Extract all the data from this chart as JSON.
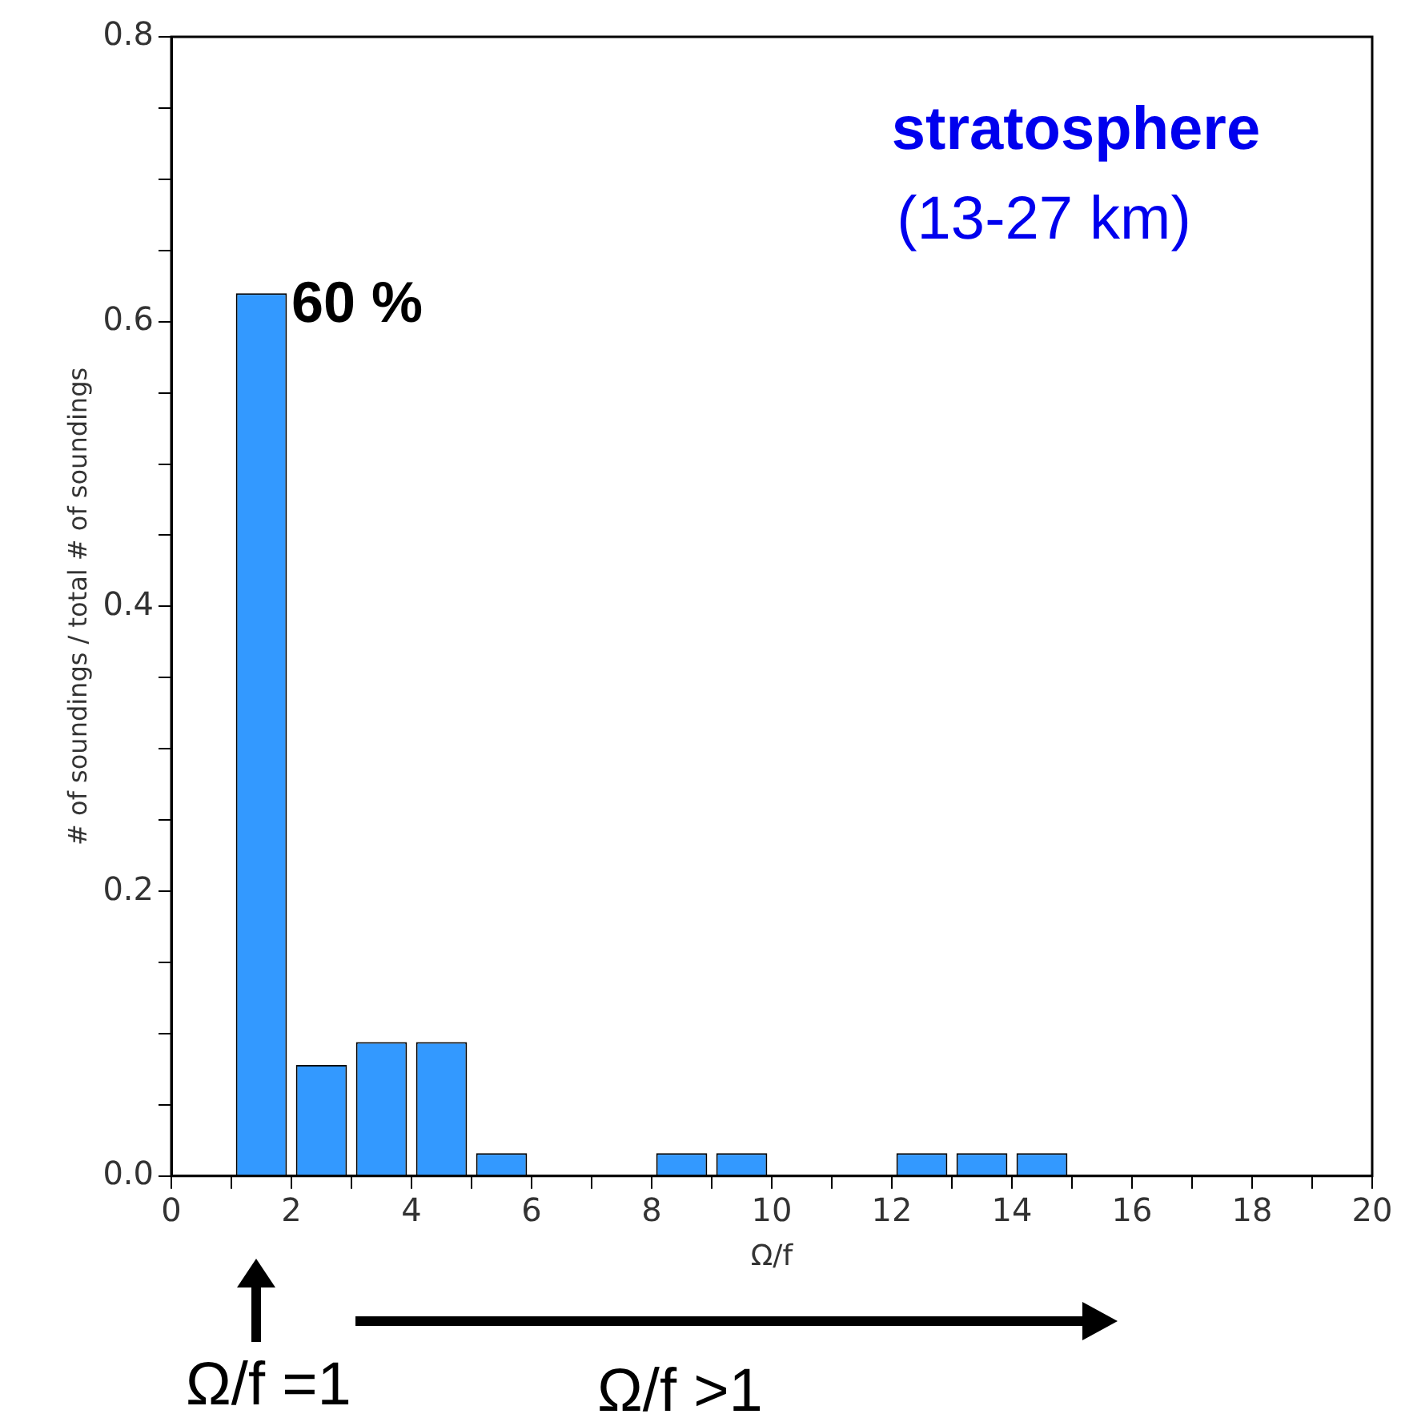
{
  "chart_data": {
    "type": "histogram",
    "title": "stratosphere",
    "subtitle": "(13-27 km)",
    "xlabel": "Ω/f",
    "ylabel": "# of soundings / total # of soundings",
    "bins": [
      1,
      2,
      3,
      4,
      5,
      6,
      7,
      8,
      9,
      10,
      11,
      12,
      13,
      14,
      15
    ],
    "values": [
      0.62,
      0.078,
      0.094,
      0.094,
      0.016,
      0,
      0,
      0.016,
      0.016,
      0,
      0,
      0.016,
      0.016,
      0.016
    ],
    "color": "#3399ff",
    "xlim": [
      0,
      20
    ],
    "xticks": [
      0,
      {
        "value": 1,
        "label": null
      },
      2,
      {
        "value": 3,
        "label": null
      },
      4,
      {
        "value": 5,
        "label": null
      },
      6,
      {
        "value": 7,
        "label": null
      },
      8,
      {
        "value": 9,
        "label": null
      },
      10,
      {
        "value": 11,
        "label": null
      },
      12,
      {
        "value": 13,
        "label": null
      },
      14,
      {
        "value": 15,
        "label": null
      },
      16,
      {
        "value": 17,
        "label": null
      },
      18,
      {
        "value": 19,
        "label": null
      },
      20
    ],
    "ylim": [
      0,
      0.8
    ],
    "yticks": [
      {
        "value": 0,
        "label": "0.0"
      },
      {
        "value": 0.05,
        "label": null
      },
      {
        "value": 0.1,
        "label": null
      },
      {
        "value": 0.15,
        "label": null
      },
      {
        "value": 0.2,
        "label": "0.2"
      },
      {
        "value": 0.25,
        "label": null
      },
      {
        "value": 0.3,
        "label": null
      },
      {
        "value": 0.35,
        "label": null
      },
      {
        "value": 0.4,
        "label": "0.4"
      },
      {
        "value": 0.45,
        "label": null
      },
      {
        "value": 0.5,
        "label": null
      },
      {
        "value": 0.55,
        "label": null
      },
      {
        "value": 0.6,
        "label": "0.6"
      },
      {
        "value": 0.65,
        "label": null
      },
      {
        "value": 0.7,
        "label": null
      },
      {
        "value": 0.75,
        "label": null
      },
      {
        "value": 0.8,
        "label": "0.8"
      }
    ],
    "grid": false,
    "legend": false,
    "annotations": [
      {
        "text": "60 %",
        "x": 2,
        "y": 0.6
      },
      "Ω/f =1",
      "Ω/f >1"
    ]
  }
}
